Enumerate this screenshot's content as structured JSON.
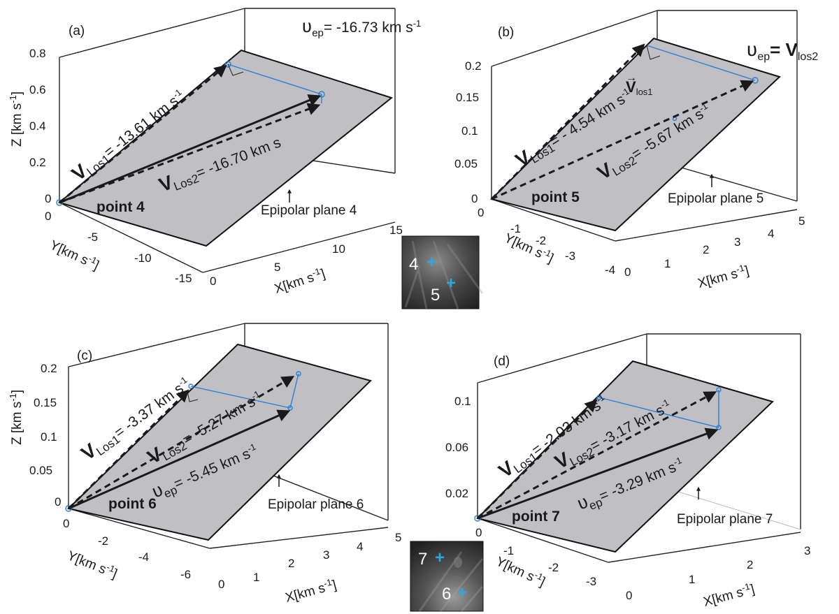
{
  "chart_data": [
    {
      "panel_label": "(a)",
      "type": "vector3d",
      "point_name": "point 4",
      "plane_label": "Epipolar plane 4",
      "header": "ʋ<sub>ep</sub>= -16.73 km s⁻¹",
      "header_parts": {
        "sym": "ʋ",
        "sub": "ep",
        "rest": "= -16.73 km s",
        "sup": "-1"
      },
      "axes": {
        "x": {
          "label": "X[km s-1]",
          "ticks": [
            "0",
            "5",
            "10",
            "15"
          ],
          "range": [
            0,
            15
          ]
        },
        "y": {
          "label": "Y[km s-1]",
          "ticks": [
            "0",
            "-5",
            "-10",
            "-15"
          ],
          "range": [
            -15,
            0
          ]
        },
        "z": {
          "label": "Z  [km s-1]",
          "ticks": [
            "0",
            "0.2",
            "0.4",
            "0.6",
            "0.8"
          ],
          "range": [
            0,
            0.8
          ]
        }
      },
      "vectors": [
        {
          "name": "V Los1",
          "sub": "Los1",
          "value": "-13.61",
          "style": "dashed",
          "text": "= -13.61 km s",
          "sup": "-1"
        },
        {
          "name": "V Los2",
          "sub": "Los2",
          "value": "-16.70",
          "style": "dashed",
          "text": "= -16.70 km s",
          "sup": "-1"
        },
        {
          "name": "ʋ ep",
          "value": "-16.73",
          "style": "solid"
        }
      ]
    },
    {
      "panel_label": "(b)",
      "type": "vector3d",
      "point_name": "point 5",
      "plane_label": "Epipolar plane 5",
      "header_parts": {
        "sym": "ʋ",
        "sub": "ep",
        "eq": "= V",
        "sub2": "los2"
      },
      "vlos_label": {
        "arrow": "→",
        "V": "V",
        "sub": "los1"
      },
      "axes": {
        "x": {
          "label": "X[km s-1]",
          "ticks": [
            "0",
            "1",
            "2",
            "3",
            "4",
            "5"
          ],
          "range": [
            0,
            5
          ]
        },
        "y": {
          "label": "Y[km s-1]",
          "ticks": [
            "0",
            "-1",
            "-2",
            "-3",
            "-4"
          ],
          "range": [
            -4,
            0
          ]
        },
        "z": {
          "ticks": [
            "0",
            "0.05",
            "0.1",
            "0.15",
            "0.2"
          ],
          "range": [
            0,
            0.2
          ]
        }
      },
      "vectors": [
        {
          "name": "V Los1",
          "sub": "Los1",
          "value": "-4.54",
          "style": "dashed",
          "text": "= - 4.54 km s",
          "sup": "-1"
        },
        {
          "name": "V Los2",
          "sub": "Los2",
          "value": "-5.67",
          "style": "dashed",
          "text": "= -5.67 km s",
          "sup": "-1"
        }
      ]
    },
    {
      "panel_label": "(c)",
      "type": "vector3d",
      "point_name": "point 6",
      "plane_label": "Epipolar plane 6",
      "axes": {
        "x": {
          "label": "X[km s-1]",
          "ticks": [
            "0",
            "1",
            "2",
            "3",
            "4",
            "5"
          ],
          "range": [
            0,
            5
          ]
        },
        "y": {
          "label": "Y[km s-1]",
          "ticks": [
            "0",
            "-2",
            "-4",
            "-6"
          ],
          "range": [
            -6,
            0
          ]
        },
        "z": {
          "label": "Z  [km s-1]",
          "ticks": [
            "0",
            "0.05",
            "0.1",
            "0.15",
            "0.2"
          ],
          "range": [
            0,
            0.2
          ]
        }
      },
      "vectors": [
        {
          "name": "V Los1",
          "sub": "Los1",
          "value": "-3.37",
          "style": "dashed",
          "text": "= -3.37 km s",
          "sup": "-1"
        },
        {
          "name": "V Los2",
          "sub": "Los2",
          "value": "-5.27",
          "style": "dashed",
          "text": "= -5.27 km s",
          "sup": "-1"
        },
        {
          "name": "ʋ ep",
          "sub": "ep",
          "value": "-5.45",
          "style": "solid",
          "text": "= -5.45 km s",
          "sup": "-1"
        }
      ]
    },
    {
      "panel_label": "(d)",
      "type": "vector3d",
      "point_name": "point 7",
      "plane_label": "Epipolar plane 7",
      "axes": {
        "x": {
          "label": "X[km s-1]",
          "ticks": [
            "0",
            "1",
            "2",
            "3"
          ],
          "range": [
            0,
            3
          ]
        },
        "y": {
          "label": "Y[km s-1]",
          "ticks": [
            "0",
            "-1",
            "-2",
            "-3"
          ],
          "range": [
            -3,
            0
          ]
        },
        "z": {
          "ticks": [
            "0.02",
            "0.06",
            "0.1"
          ],
          "range": [
            0,
            0.12
          ]
        }
      },
      "vectors": [
        {
          "name": "V Los1",
          "sub": "Los1",
          "value": "-2.03",
          "style": "dashed",
          "text": "= -2.03 km s",
          "sup": "-1"
        },
        {
          "name": "V Los2",
          "sub": "Los2",
          "value": "-3.17",
          "style": "dashed",
          "text": "= -3.17 km s",
          "sup": "-1"
        },
        {
          "name": "ʋ ep",
          "sub": "ep",
          "value": "-3.29",
          "style": "solid",
          "text": "= -3.29 km s",
          "sup": "-1"
        }
      ]
    }
  ],
  "insets": [
    {
      "markers": [
        "4",
        "5"
      ]
    },
    {
      "markers": [
        "7",
        "6"
      ]
    }
  ],
  "colors": {
    "plane_fill": "#c0c0c4",
    "connector": "#2a7fd6",
    "vector": "#1a1a1a",
    "marker": "#2aa8e0",
    "inset_bg": "#3a3a3a"
  }
}
